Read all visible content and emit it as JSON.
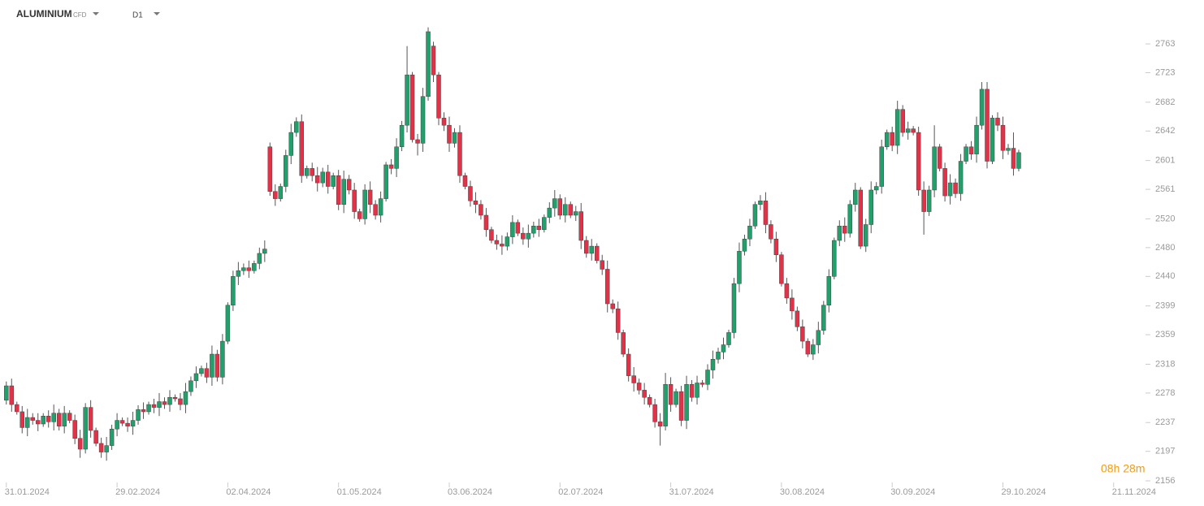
{
  "header": {
    "symbol": "ALUMINIUM",
    "kind": "CFD",
    "timeframe": "D1"
  },
  "countdown": "08h 28m",
  "chart_data": {
    "type": "candlestick",
    "up_color": "#22a06b",
    "down_color": "#e33248",
    "xlim": [
      -1.2,
      214.5
    ],
    "xticks": [
      {
        "value": 0,
        "label": "31.01.2024"
      },
      {
        "value": 21,
        "label": "29.02.2024"
      },
      {
        "value": 42,
        "label": "02.04.2024"
      },
      {
        "value": 63,
        "label": "01.05.2024"
      },
      {
        "value": 84,
        "label": "03.06.2024"
      },
      {
        "value": 105,
        "label": "02.07.2024"
      },
      {
        "value": 126,
        "label": "31.07.2024"
      },
      {
        "value": 147,
        "label": "30.08.2024"
      },
      {
        "value": 168,
        "label": "30.09.2024"
      },
      {
        "value": 189,
        "label": "29.10.2024"
      },
      {
        "value": 210,
        "label": "21.11.2024"
      }
    ],
    "ylim": [
      2147,
      2824
    ],
    "yticks": [
      2156,
      2197,
      2237,
      2278,
      2318,
      2359,
      2399,
      2440,
      2480,
      2520,
      2561,
      2601,
      2642,
      2682,
      2723,
      2763
    ],
    "ohlc": [
      [
        2268,
        2294,
        2262,
        2288
      ],
      [
        2288,
        2298,
        2252,
        2262
      ],
      [
        2262,
        2266,
        2248,
        2252
      ],
      [
        2252,
        2260,
        2222,
        2230
      ],
      [
        2230,
        2256,
        2218,
        2244
      ],
      [
        2244,
        2250,
        2234,
        2240
      ],
      [
        2240,
        2250,
        2225,
        2235
      ],
      [
        2235,
        2250,
        2231,
        2246
      ],
      [
        2246,
        2254,
        2230,
        2238
      ],
      [
        2238,
        2262,
        2226,
        2250
      ],
      [
        2250,
        2256,
        2226,
        2232
      ],
      [
        2232,
        2260,
        2222,
        2250
      ],
      [
        2250,
        2254,
        2236,
        2240
      ],
      [
        2240,
        2248,
        2207,
        2215
      ],
      [
        2215,
        2227,
        2188,
        2200
      ],
      [
        2200,
        2264,
        2194,
        2258
      ],
      [
        2258,
        2268,
        2216,
        2226
      ],
      [
        2226,
        2230,
        2204,
        2208
      ],
      [
        2208,
        2216,
        2188,
        2196
      ],
      [
        2196,
        2217,
        2184,
        2205
      ],
      [
        2205,
        2234,
        2199,
        2228
      ],
      [
        2228,
        2250,
        2218,
        2240
      ],
      [
        2240,
        2244,
        2232,
        2236
      ],
      [
        2236,
        2244,
        2224,
        2232
      ],
      [
        2232,
        2252,
        2220,
        2240
      ],
      [
        2240,
        2261,
        2234,
        2255
      ],
      [
        2255,
        2265,
        2242,
        2252
      ],
      [
        2252,
        2266,
        2248,
        2262
      ],
      [
        2262,
        2270,
        2250,
        2258
      ],
      [
        2258,
        2278,
        2246,
        2266
      ],
      [
        2266,
        2272,
        2256,
        2262
      ],
      [
        2262,
        2282,
        2252,
        2272
      ],
      [
        2272,
        2276,
        2266,
        2270
      ],
      [
        2270,
        2278,
        2254,
        2262
      ],
      [
        2262,
        2292,
        2250,
        2280
      ],
      [
        2280,
        2301,
        2274,
        2295
      ],
      [
        2295,
        2315,
        2285,
        2305
      ],
      [
        2305,
        2316,
        2301,
        2312
      ],
      [
        2312,
        2320,
        2292,
        2300
      ],
      [
        2300,
        2344,
        2288,
        2332
      ],
      [
        2332,
        2338,
        2294,
        2300
      ],
      [
        2300,
        2360,
        2290,
        2350
      ],
      [
        2350,
        2404,
        2346,
        2400
      ],
      [
        2400,
        2448,
        2392,
        2440
      ],
      [
        2440,
        2460,
        2428,
        2448
      ],
      [
        2448,
        2458,
        2442,
        2452
      ],
      [
        2452,
        2462,
        2438,
        2448
      ],
      [
        2448,
        2462,
        2444,
        2458
      ],
      [
        2458,
        2480,
        2450,
        2472
      ],
      [
        2472,
        2490,
        2460,
        2478
      ],
      [
        2620,
        2626,
        2552,
        2558
      ],
      [
        2558,
        2568,
        2538,
        2548
      ],
      [
        2548,
        2569,
        2544,
        2565
      ],
      [
        2565,
        2616,
        2557,
        2608
      ],
      [
        2608,
        2652,
        2596,
        2640
      ],
      [
        2640,
        2661,
        2634,
        2655
      ],
      [
        2655,
        2665,
        2570,
        2580
      ],
      [
        2580,
        2594,
        2576,
        2590
      ],
      [
        2590,
        2598,
        2572,
        2580
      ],
      [
        2580,
        2592,
        2558,
        2570
      ],
      [
        2570,
        2591,
        2564,
        2585
      ],
      [
        2585,
        2595,
        2555,
        2565
      ],
      [
        2565,
        2584,
        2561,
        2580
      ],
      [
        2580,
        2588,
        2532,
        2540
      ],
      [
        2540,
        2587,
        2528,
        2575
      ],
      [
        2575,
        2581,
        2554,
        2560
      ],
      [
        2560,
        2570,
        2520,
        2530
      ],
      [
        2530,
        2534,
        2516,
        2520
      ],
      [
        2520,
        2568,
        2512,
        2560
      ],
      [
        2560,
        2572,
        2528,
        2540
      ],
      [
        2540,
        2546,
        2519,
        2525
      ],
      [
        2525,
        2558,
        2515,
        2548
      ],
      [
        2548,
        2599,
        2544,
        2595
      ],
      [
        2595,
        2603,
        2582,
        2590
      ],
      [
        2590,
        2632,
        2578,
        2620
      ],
      [
        2620,
        2656,
        2614,
        2650
      ],
      [
        2650,
        2760,
        2640,
        2720
      ],
      [
        2720,
        2724,
        2626,
        2630
      ],
      [
        2630,
        2638,
        2608,
        2625
      ],
      [
        2625,
        2702,
        2613,
        2690
      ],
      [
        2690,
        2786,
        2684,
        2780
      ],
      [
        2760,
        2766,
        2710,
        2720
      ],
      [
        2720,
        2724,
        2650,
        2660
      ],
      [
        2660,
        2668,
        2642,
        2650
      ],
      [
        2650,
        2662,
        2613,
        2625
      ],
      [
        2625,
        2646,
        2619,
        2640
      ],
      [
        2640,
        2650,
        2570,
        2580
      ],
      [
        2580,
        2584,
        2561,
        2565
      ],
      [
        2565,
        2573,
        2537,
        2545
      ],
      [
        2545,
        2557,
        2528,
        2540
      ],
      [
        2540,
        2546,
        2519,
        2525
      ],
      [
        2525,
        2535,
        2495,
        2505
      ],
      [
        2505,
        2509,
        2486,
        2490
      ],
      [
        2490,
        2498,
        2477,
        2485
      ],
      [
        2485,
        2497,
        2470,
        2482
      ],
      [
        2482,
        2501,
        2476,
        2495
      ],
      [
        2495,
        2525,
        2485,
        2515
      ],
      [
        2515,
        2519,
        2496,
        2500
      ],
      [
        2500,
        2508,
        2484,
        2492
      ],
      [
        2492,
        2512,
        2480,
        2500
      ],
      [
        2500,
        2516,
        2494,
        2510
      ],
      [
        2510,
        2520,
        2495,
        2505
      ],
      [
        2505,
        2526,
        2501,
        2522
      ],
      [
        2522,
        2543,
        2514,
        2535
      ],
      [
        2535,
        2560,
        2523,
        2548
      ],
      [
        2548,
        2554,
        2519,
        2525
      ],
      [
        2525,
        2550,
        2515,
        2540
      ],
      [
        2540,
        2544,
        2521,
        2525
      ],
      [
        2525,
        2538,
        2517,
        2530
      ],
      [
        2530,
        2542,
        2478,
        2490
      ],
      [
        2490,
        2496,
        2466,
        2472
      ],
      [
        2472,
        2492,
        2462,
        2482
      ],
      [
        2482,
        2486,
        2458,
        2462
      ],
      [
        2462,
        2470,
        2442,
        2450
      ],
      [
        2450,
        2462,
        2390,
        2402
      ],
      [
        2402,
        2408,
        2389,
        2395
      ],
      [
        2395,
        2405,
        2352,
        2362
      ],
      [
        2362,
        2366,
        2328,
        2332
      ],
      [
        2332,
        2340,
        2294,
        2302
      ],
      [
        2302,
        2314,
        2280,
        2292
      ],
      [
        2292,
        2298,
        2276,
        2282
      ],
      [
        2282,
        2292,
        2262,
        2272
      ],
      [
        2272,
        2276,
        2258,
        2262
      ],
      [
        2262,
        2270,
        2230,
        2238
      ],
      [
        2238,
        2250,
        2205,
        2232
      ],
      [
        2232,
        2306,
        2226,
        2290
      ],
      [
        2290,
        2300,
        2252,
        2262
      ],
      [
        2262,
        2284,
        2258,
        2280
      ],
      [
        2280,
        2288,
        2232,
        2240
      ],
      [
        2240,
        2302,
        2228,
        2290
      ],
      [
        2290,
        2296,
        2266,
        2272
      ],
      [
        2272,
        2302,
        2262,
        2292
      ],
      [
        2292,
        2296,
        2286,
        2290
      ],
      [
        2290,
        2318,
        2282,
        2310
      ],
      [
        2310,
        2337,
        2298,
        2325
      ],
      [
        2325,
        2341,
        2319,
        2335
      ],
      [
        2335,
        2355,
        2325,
        2345
      ],
      [
        2345,
        2366,
        2341,
        2362
      ],
      [
        2362,
        2438,
        2354,
        2430
      ],
      [
        2430,
        2487,
        2418,
        2475
      ],
      [
        2475,
        2498,
        2469,
        2492
      ],
      [
        2492,
        2520,
        2482,
        2510
      ],
      [
        2510,
        2544,
        2506,
        2540
      ],
      [
        2540,
        2553,
        2532,
        2545
      ],
      [
        2545,
        2557,
        2500,
        2512
      ],
      [
        2512,
        2518,
        2486,
        2492
      ],
      [
        2492,
        2502,
        2460,
        2470
      ],
      [
        2470,
        2474,
        2426,
        2430
      ],
      [
        2430,
        2438,
        2402,
        2410
      ],
      [
        2410,
        2422,
        2380,
        2392
      ],
      [
        2392,
        2398,
        2364,
        2370
      ],
      [
        2370,
        2380,
        2340,
        2350
      ],
      [
        2350,
        2354,
        2328,
        2332
      ],
      [
        2332,
        2353,
        2324,
        2345
      ],
      [
        2345,
        2377,
        2333,
        2365
      ],
      [
        2365,
        2406,
        2359,
        2400
      ],
      [
        2400,
        2450,
        2390,
        2440
      ],
      [
        2440,
        2494,
        2436,
        2490
      ],
      [
        2490,
        2518,
        2482,
        2510
      ],
      [
        2510,
        2522,
        2488,
        2500
      ],
      [
        2500,
        2546,
        2494,
        2540
      ],
      [
        2540,
        2570,
        2530,
        2560
      ],
      [
        2560,
        2564,
        2478,
        2482
      ],
      [
        2482,
        2520,
        2474,
        2512
      ],
      [
        2512,
        2572,
        2500,
        2560
      ],
      [
        2560,
        2571,
        2554,
        2565
      ],
      [
        2565,
        2630,
        2555,
        2620
      ],
      [
        2620,
        2644,
        2616,
        2640
      ],
      [
        2640,
        2648,
        2614,
        2622
      ],
      [
        2622,
        2684,
        2610,
        2672
      ],
      [
        2672,
        2678,
        2634,
        2640
      ],
      [
        2640,
        2655,
        2630,
        2645
      ],
      [
        2645,
        2649,
        2636,
        2640
      ],
      [
        2640,
        2648,
        2552,
        2560
      ],
      [
        2560,
        2572,
        2498,
        2530
      ],
      [
        2530,
        2566,
        2524,
        2560
      ],
      [
        2560,
        2650,
        2550,
        2620
      ],
      [
        2620,
        2624,
        2586,
        2590
      ],
      [
        2590,
        2598,
        2544,
        2552
      ],
      [
        2552,
        2582,
        2540,
        2570
      ],
      [
        2570,
        2576,
        2549,
        2555
      ],
      [
        2555,
        2610,
        2545,
        2600
      ],
      [
        2600,
        2624,
        2596,
        2620
      ],
      [
        2620,
        2628,
        2602,
        2610
      ],
      [
        2610,
        2662,
        2598,
        2650
      ],
      [
        2650,
        2710,
        2644,
        2700
      ],
      [
        2700,
        2710,
        2590,
        2600
      ],
      [
        2600,
        2664,
        2596,
        2660
      ],
      [
        2660,
        2668,
        2642,
        2650
      ],
      [
        2650,
        2662,
        2603,
        2615
      ],
      [
        2615,
        2624,
        2609,
        2618
      ],
      [
        2618,
        2640,
        2580,
        2590
      ],
      [
        2590,
        2616,
        2586,
        2612
      ]
    ]
  }
}
